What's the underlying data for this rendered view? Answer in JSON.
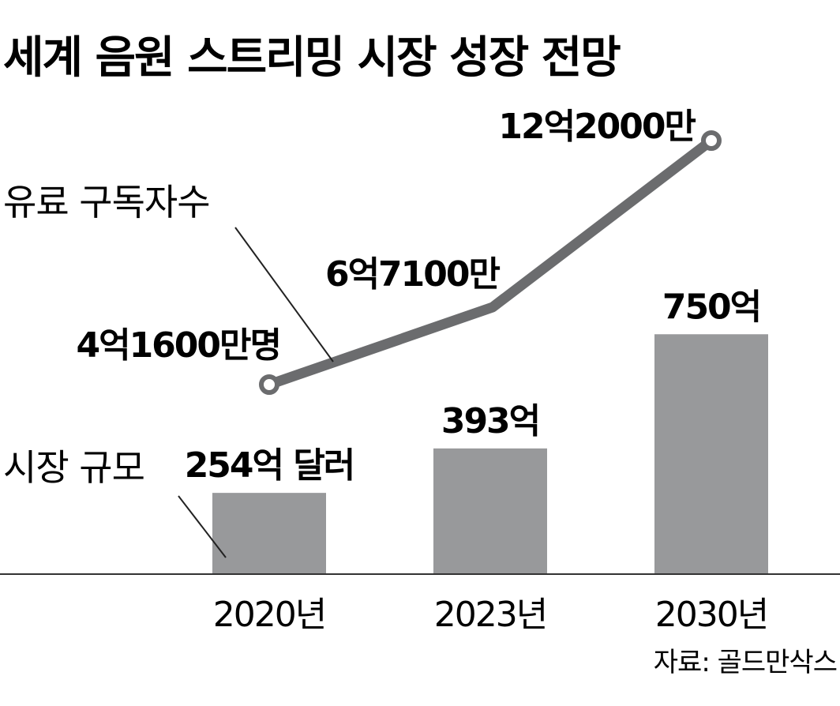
{
  "chart_data": {
    "type": "bar+line",
    "title": "세계 음원 스트리밍 시장 성장 전망",
    "categories": [
      "2020년",
      "2023년",
      "2030년"
    ],
    "series": [
      {
        "name": "시장 규모",
        "type": "bar",
        "values": [
          254,
          393,
          750
        ],
        "labels": [
          "254억 달러",
          "393억",
          "750억"
        ],
        "color": "#98999b"
      },
      {
        "name": "유료 구독자수",
        "type": "line",
        "values": [
          416000000,
          671000000,
          1220000000
        ],
        "labels": [
          "4억1600만명",
          "6억7100만",
          "12억2000만"
        ],
        "color": "#6b6c6e"
      }
    ],
    "source": "자료: 골드만삭스",
    "grid": false,
    "legend": "direct-labels"
  }
}
